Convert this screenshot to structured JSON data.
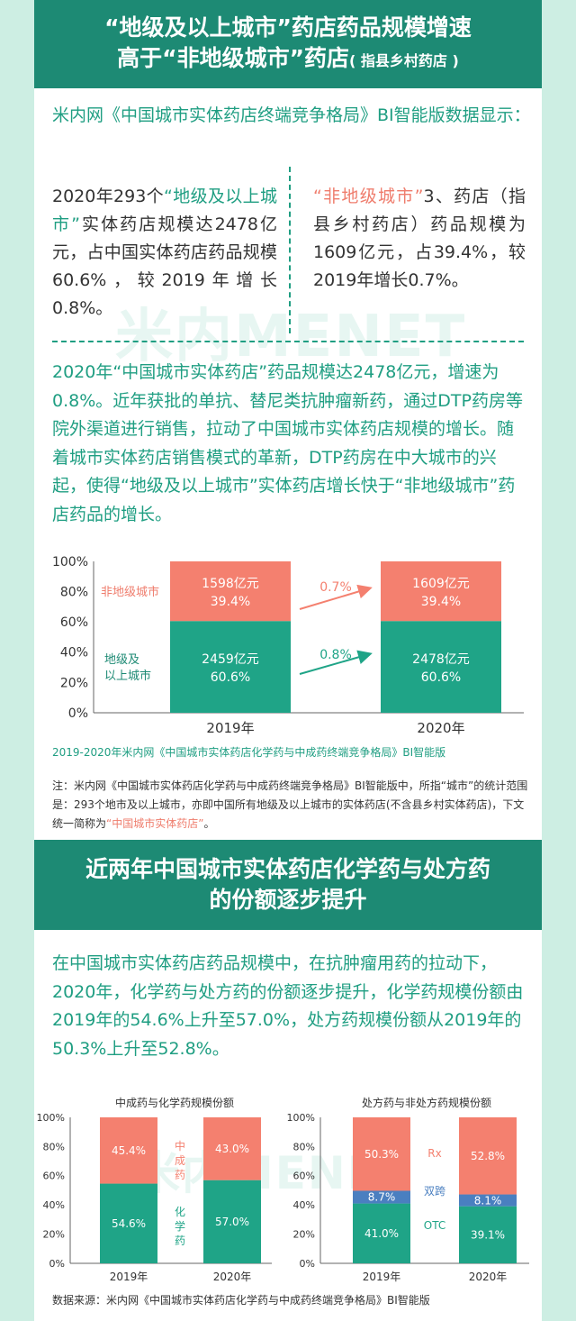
{
  "banner1": {
    "line1": "“地级及以上城市”药店药品规模增速",
    "line2": "高于“非地级城市”药店",
    "line2_note": "( 指县乡村药店 )"
  },
  "intro": "米内网《中国城市实体药店终端竞争格局》BI智能版数据显示：",
  "left_col": {
    "p1": "2020年293个",
    "hl": "“地级及以上城市”",
    "p2": "实体药店规模达2478亿元，占中国实体药店药品规模60.6%，较2019年增长0.8%。"
  },
  "right_col": {
    "hl": "“非地级城市”",
    "p1": "3、药店（指县乡村药店）药品规模为1609亿元，占39.4%，较2019年增长0.7%。"
  },
  "watermark": "米内MENET",
  "paragraph1": "2020年“中国城市实体药店”药品规模达2478亿元，增速为0.8%。近年获批的单抗、替尼类抗肿瘤新药，通过DTP药房等院外渠道进行销售，拉动了中国城市实体药店规模的增长。随着城市实体药店销售模式的革新，DTP药房在中大城市的兴起，使得“地级及以上城市”实体药店增长快于“非地级城市”药店药品的增长。",
  "chart_data": [
    {
      "type": "bar",
      "stacked": true,
      "categories": [
        "2019年",
        "2020年"
      ],
      "ylim": [
        0,
        100
      ],
      "yticks": [
        "0%",
        "20%",
        "40%",
        "60%",
        "80%",
        "100%"
      ],
      "series": [
        {
          "name": "地级及以上城市",
          "values": [
            60.6,
            60.6
          ],
          "amounts": [
            "2459亿元",
            "2478亿元"
          ],
          "labels": [
            "60.6%",
            "60.6%"
          ],
          "color": "#1fa487"
        },
        {
          "name": "非地级城市",
          "values": [
            39.4,
            39.4
          ],
          "amounts": [
            "1598亿元",
            "1609亿元"
          ],
          "labels": [
            "39.4%",
            "39.4%"
          ],
          "color": "#f4806f"
        }
      ],
      "series_label_top": "非地级城市",
      "series_label_bottom_1": "地级及",
      "series_label_bottom_2": "以上城市",
      "growth_top": "0.7%",
      "growth_bottom": "0.8%",
      "source": "2019-2020年米内网《中国城市实体药店化学药与中成药终端竞争格局》BI智能版"
    },
    {
      "type": "bar",
      "stacked": true,
      "title": "中成药与化学药规模份额",
      "categories": [
        "2019年",
        "2020年"
      ],
      "ylim": [
        0,
        100
      ],
      "yticks": [
        "0%",
        "20%",
        "40%",
        "60%",
        "80%",
        "100%"
      ],
      "series": [
        {
          "name": "化学药",
          "values": [
            54.6,
            57.0
          ],
          "labels": [
            "54.6%",
            "57.0%"
          ],
          "color": "#1fa487"
        },
        {
          "name": "中成药",
          "values": [
            45.4,
            43.0
          ],
          "labels": [
            "45.4%",
            "43.0%"
          ],
          "color": "#f4806f"
        }
      ]
    },
    {
      "type": "bar",
      "stacked": true,
      "title": "处方药与非处方药规模份额",
      "categories": [
        "2019年",
        "2020年"
      ],
      "ylim": [
        0,
        100
      ],
      "yticks": [
        "0%",
        "20%",
        "40%",
        "60%",
        "80%",
        "100%"
      ],
      "series": [
        {
          "name": "OTC",
          "values": [
            41.0,
            39.1
          ],
          "labels": [
            "41.0%",
            "39.1%"
          ],
          "color": "#1fa487"
        },
        {
          "name": "双跨",
          "values": [
            8.7,
            8.1
          ],
          "labels": [
            "8.7%",
            "8.1%"
          ],
          "color": "#4a7fc0"
        },
        {
          "name": "Rx",
          "values": [
            50.3,
            52.8
          ],
          "labels": [
            "50.3%",
            "52.8%"
          ],
          "color": "#f4806f"
        }
      ]
    }
  ],
  "note": {
    "text": "注：米内网《中国城市实体药店化学药与中成药终端竞争格局》BI智能版中，所指“城市”的统计范围是：293个地市及以上城市，亦即中国所有地级及以上城市的实体药店(不含县乡村实体药店)，下文统一简称为",
    "highlight": "“中国城市实体药店”",
    "end": "。"
  },
  "banner2": {
    "line1": "近两年中国城市实体药店化学药与处方药",
    "line2": "的份额逐步提升"
  },
  "paragraph2": "在中国城市实体药店药品规模中，在抗肿瘤用药的拉动下，2020年，化学药与处方药的份额逐步提升，化学药规模份额由2019年的54.6%上升至57.0%，处方药规模份额从2019年的50.3%上升至52.8%。",
  "source2": "数据来源：米内网《中国城市实体药店化学药与中成药终端竞争格局》BI智能版",
  "colors": {
    "teal": "#1fa487",
    "salmon": "#f4806f",
    "blue": "#4a7fc0",
    "banner": "#1d8a74",
    "background": "#cdeee3"
  }
}
